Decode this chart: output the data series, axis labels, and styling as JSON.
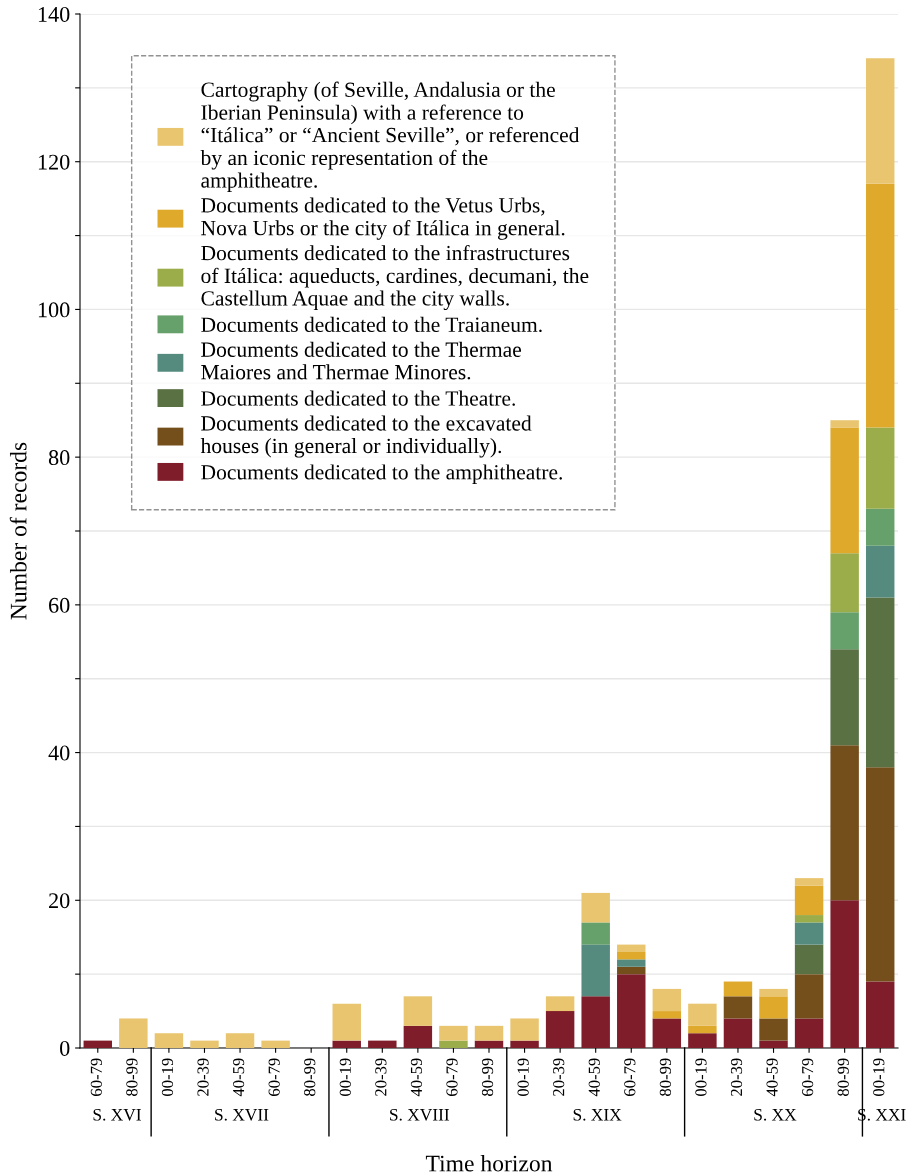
{
  "chart_data": {
    "type": "bar",
    "stacked": true,
    "xlabel": "Time horizon",
    "ylabel": "Number of records",
    "categories": [
      "60-79",
      "80-99",
      "00-19",
      "20-39",
      "40-59",
      "60-79",
      "80-99",
      "00-19",
      "20-39",
      "40-59",
      "60-79",
      "80-99",
      "00-19",
      "20-39",
      "40-59",
      "60-79",
      "80-99",
      "00-19",
      "20-39",
      "40-59",
      "60-79",
      "80-99",
      "00-19"
    ],
    "series": [
      {
        "name": "Documents dedicated to the amphitheatre.",
        "color": "#7f1d2b",
        "values": [
          1,
          0,
          0,
          0,
          0,
          0,
          0,
          1,
          1,
          3,
          0,
          1,
          1,
          5,
          7,
          10,
          4,
          2,
          4,
          1,
          4,
          20,
          9
        ]
      },
      {
        "name": "Documents dedicated to the excavated\nhouses (in general or individually).",
        "color": "#744f1c",
        "values": [
          0,
          0,
          0,
          0,
          0,
          0,
          0,
          0,
          0,
          0,
          0,
          0,
          0,
          0,
          0,
          1,
          0,
          0,
          3,
          3,
          6,
          21,
          29
        ]
      },
      {
        "name": "Documents dedicated to the Theatre.",
        "color": "#5a7144",
        "values": [
          0,
          0,
          0,
          0,
          0,
          0,
          0,
          0,
          0,
          0,
          0,
          0,
          0,
          0,
          0,
          0,
          0,
          0,
          0,
          0,
          4,
          13,
          23
        ]
      },
      {
        "name": "Documents dedicated to the Thermae\nMaiores and Thermae Minores.",
        "color": "#558a7e",
        "values": [
          0,
          0,
          0,
          0,
          0,
          0,
          0,
          0,
          0,
          0,
          0,
          0,
          0,
          0,
          7,
          1,
          0,
          0,
          0,
          0,
          3,
          0,
          7
        ]
      },
      {
        "name": "Documents dedicated to the Traianeum.",
        "color": "#66a06b",
        "values": [
          0,
          0,
          0,
          0,
          0,
          0,
          0,
          0,
          0,
          0,
          0,
          0,
          0,
          0,
          3,
          0,
          0,
          0,
          0,
          0,
          0,
          5,
          5
        ]
      },
      {
        "name": "Documents dedicated to the infrastructures\nof Itálica: aqueducts, cardines, decumani, the\nCastellum Aquae and the city walls.",
        "color": "#9aad4a",
        "values": [
          0,
          0,
          0,
          0,
          0,
          0,
          0,
          0,
          0,
          0,
          1,
          0,
          0,
          0,
          0,
          0,
          0,
          0,
          0,
          0,
          1,
          8,
          11
        ]
      },
      {
        "name": "Documents dedicated to the Vetus Urbs,\nNova Urbs or the city of Itálica in general.",
        "color": "#dfa92c",
        "values": [
          0,
          0,
          0,
          0,
          0,
          0,
          0,
          0,
          0,
          0,
          0,
          0,
          0,
          0,
          0,
          1,
          1,
          1,
          2,
          3,
          4,
          17,
          33
        ]
      },
      {
        "name": "Cartography (of Seville, Andalusia or the\nIberian Peninsula) with a reference to\n“Itálica” or “Ancient Seville”, or referenced\nby an iconic representation of the\namphitheatre.",
        "color": "#e9c56f",
        "values": [
          0,
          4,
          2,
          1,
          2,
          1,
          0,
          5,
          0,
          4,
          2,
          2,
          3,
          2,
          4,
          1,
          3,
          3,
          0,
          1,
          1,
          1,
          17
        ]
      }
    ],
    "ylim": [
      0,
      140
    ],
    "yticks": [
      0,
      {
        "value": 10,
        "label": null
      },
      20,
      {
        "value": 30,
        "label": null
      },
      40,
      {
        "value": 50,
        "label": null
      },
      60,
      {
        "value": 70,
        "label": null
      },
      80,
      {
        "value": 90,
        "label": null
      },
      100,
      {
        "value": 110,
        "label": null
      },
      120,
      {
        "value": 130,
        "label": null
      },
      140
    ],
    "grid": "y",
    "legend": "top left",
    "annotations": [
      "S. XVI",
      "S. XVII",
      "S. XVIII",
      "S. XIX",
      "S. XX",
      "S. XXI"
    ]
  }
}
